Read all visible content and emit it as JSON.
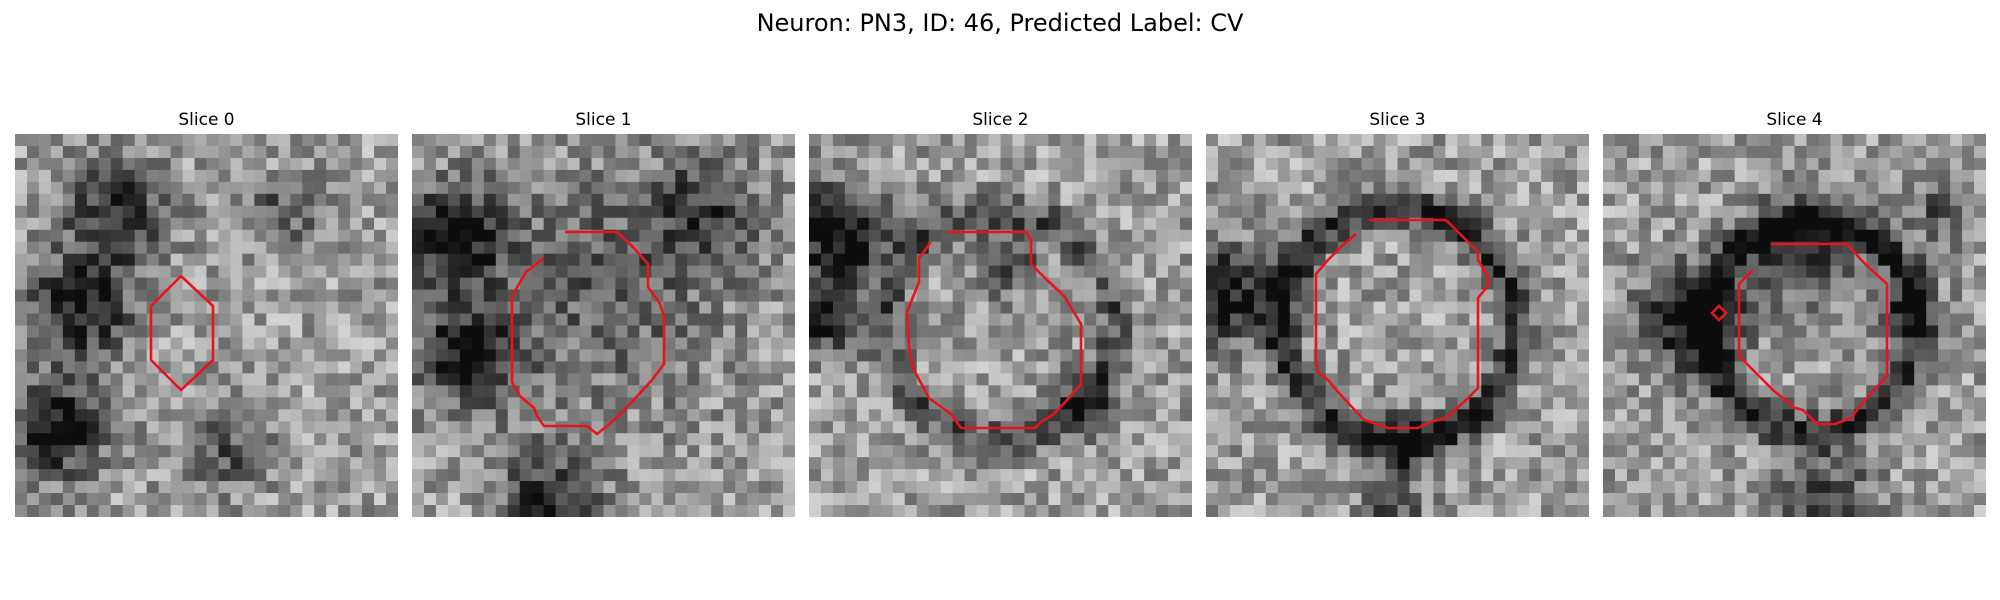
{
  "figure": {
    "title": "Neuron: PN3, ID: 46, Predicted Label: CV"
  },
  "panels": [
    {
      "title": "Slice 0",
      "seed": 11
    },
    {
      "title": "Slice 1",
      "seed": 23
    },
    {
      "title": "Slice 2",
      "seed": 37
    },
    {
      "title": "Slice 3",
      "seed": 41
    },
    {
      "title": "Slice 4",
      "seed": 53
    }
  ],
  "colors": {
    "contour": "#e8141c"
  }
}
